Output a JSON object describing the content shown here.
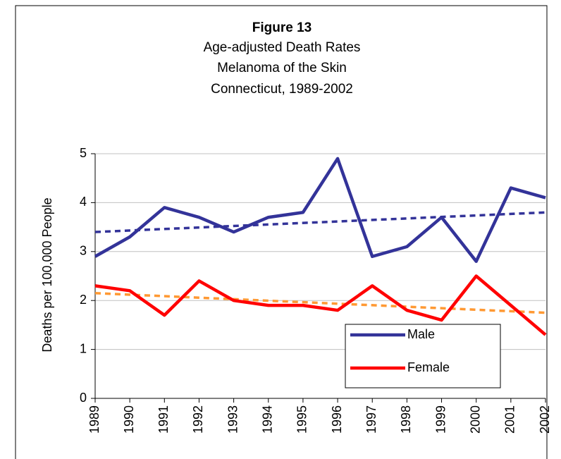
{
  "chart_data": {
    "type": "line",
    "title": "Figure 13",
    "subtitle": [
      "Age-adjusted Death Rates",
      "Melanoma of the Skin",
      "Connecticut, 1989-2002"
    ],
    "y_label": "Deaths per 100,000 People",
    "categories": [
      "1989",
      "1990",
      "1991",
      "1992",
      "1993",
      "1994",
      "1995",
      "1996",
      "1997",
      "1998",
      "1999",
      "2000",
      "2001",
      "2002"
    ],
    "series": [
      {
        "name": "Male",
        "color": "#333399",
        "trend_color": "#333399",
        "values": [
          2.9,
          3.3,
          3.9,
          3.7,
          3.4,
          3.7,
          3.8,
          4.9,
          2.9,
          3.1,
          3.7,
          2.8,
          4.3,
          4.1
        ],
        "trend_values": [
          3.4,
          3.8
        ]
      },
      {
        "name": "Female",
        "color": "#ff0000",
        "trend_color": "#ff9933",
        "values": [
          2.3,
          2.2,
          1.7,
          2.4,
          2.0,
          1.9,
          1.9,
          1.8,
          2.3,
          1.8,
          1.6,
          2.5,
          1.9,
          1.3
        ],
        "trend_values": [
          2.15,
          1.75
        ]
      }
    ],
    "ylim": [
      0,
      5
    ],
    "yticks": [
      0,
      1,
      2,
      3,
      4,
      5
    ],
    "grid": true,
    "legend": "lower right"
  }
}
